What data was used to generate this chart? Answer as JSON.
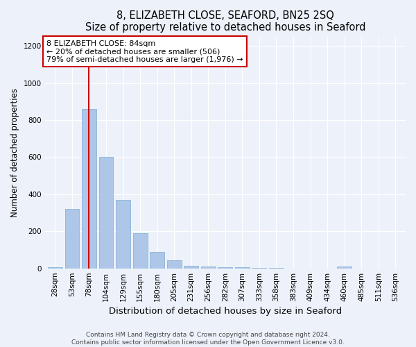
{
  "title": "8, ELIZABETH CLOSE, SEAFORD, BN25 2SQ",
  "subtitle": "Size of property relative to detached houses in Seaford",
  "xlabel": "Distribution of detached houses by size in Seaford",
  "ylabel": "Number of detached properties",
  "annotation_line": "8 ELIZABETH CLOSE: 84sqm",
  "annotation_smaller": "← 20% of detached houses are smaller (506)",
  "annotation_larger": "79% of semi-detached houses are larger (1,976) →",
  "footnote1": "Contains HM Land Registry data © Crown copyright and database right 2024.",
  "footnote2": "Contains public sector information licensed under the Open Government Licence v3.0.",
  "bar_color": "#aec6e8",
  "bar_edge_color": "#7aadd4",
  "highlight_line_color": "#cc0000",
  "annotation_box_color": "#cc0000",
  "background_color": "#edf2fa",
  "ylim": [
    0,
    1250
  ],
  "yticks": [
    0,
    200,
    400,
    600,
    800,
    1000,
    1200
  ],
  "bin_labels": [
    "28sqm",
    "53sqm",
    "78sqm",
    "104sqm",
    "129sqm",
    "155sqm",
    "180sqm",
    "205sqm",
    "231sqm",
    "256sqm",
    "282sqm",
    "307sqm",
    "333sqm",
    "358sqm",
    "383sqm",
    "409sqm",
    "434sqm",
    "460sqm",
    "485sqm",
    "511sqm",
    "536sqm"
  ],
  "bar_heights": [
    5,
    320,
    860,
    600,
    370,
    190,
    90,
    45,
    15,
    10,
    5,
    5,
    3,
    2,
    0,
    0,
    0,
    10,
    0,
    0,
    0
  ],
  "property_bin_index": 2,
  "title_fontsize": 10.5,
  "xlabel_fontsize": 9.5,
  "ylabel_fontsize": 8.5,
  "tick_fontsize": 7.5,
  "annotation_fontsize": 8,
  "footnote_fontsize": 6.5
}
